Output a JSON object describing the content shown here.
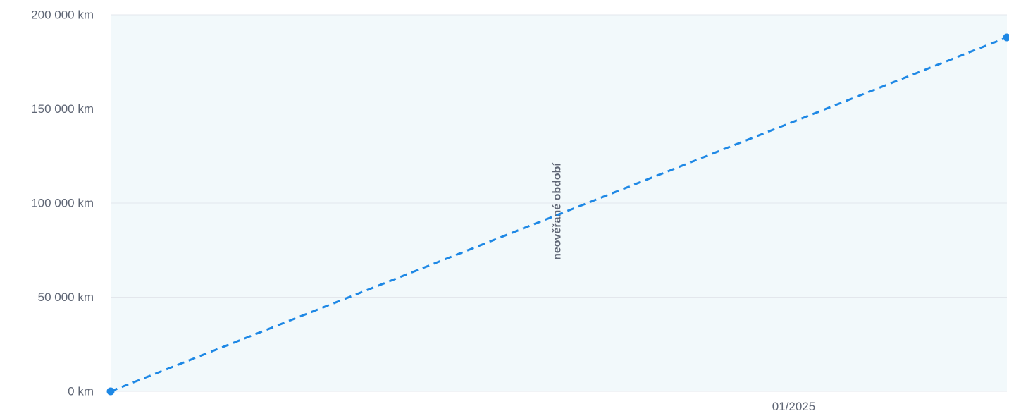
{
  "chart_data": {
    "type": "line",
    "title": "",
    "xlabel": "",
    "ylabel": "",
    "y_unit": "km",
    "ylim": [
      0,
      200000
    ],
    "y_ticks": [
      {
        "value": 0,
        "label": "0 km"
      },
      {
        "value": 50000,
        "label": "50 000 km"
      },
      {
        "value": 100000,
        "label": "100 000 km"
      },
      {
        "value": 150000,
        "label": "150 000 km"
      },
      {
        "value": 200000,
        "label": "200 000 km"
      }
    ],
    "x_range": [
      "2023-06-01",
      "2025-07-01"
    ],
    "x_ticks": [
      {
        "value": "2025-01-01",
        "label": "01/2025"
      }
    ],
    "grid": true,
    "shaded_band": {
      "label": "neověřané období",
      "from": "2023-06-01",
      "to": "2025-07-01",
      "color": "#f2f9fb"
    },
    "series": [
      {
        "style": "dashed",
        "color": "#1e88e5",
        "points": [
          {
            "x": "2023-06-01",
            "y": 0
          },
          {
            "x": "2025-07-01",
            "y": 188000
          }
        ]
      }
    ]
  }
}
